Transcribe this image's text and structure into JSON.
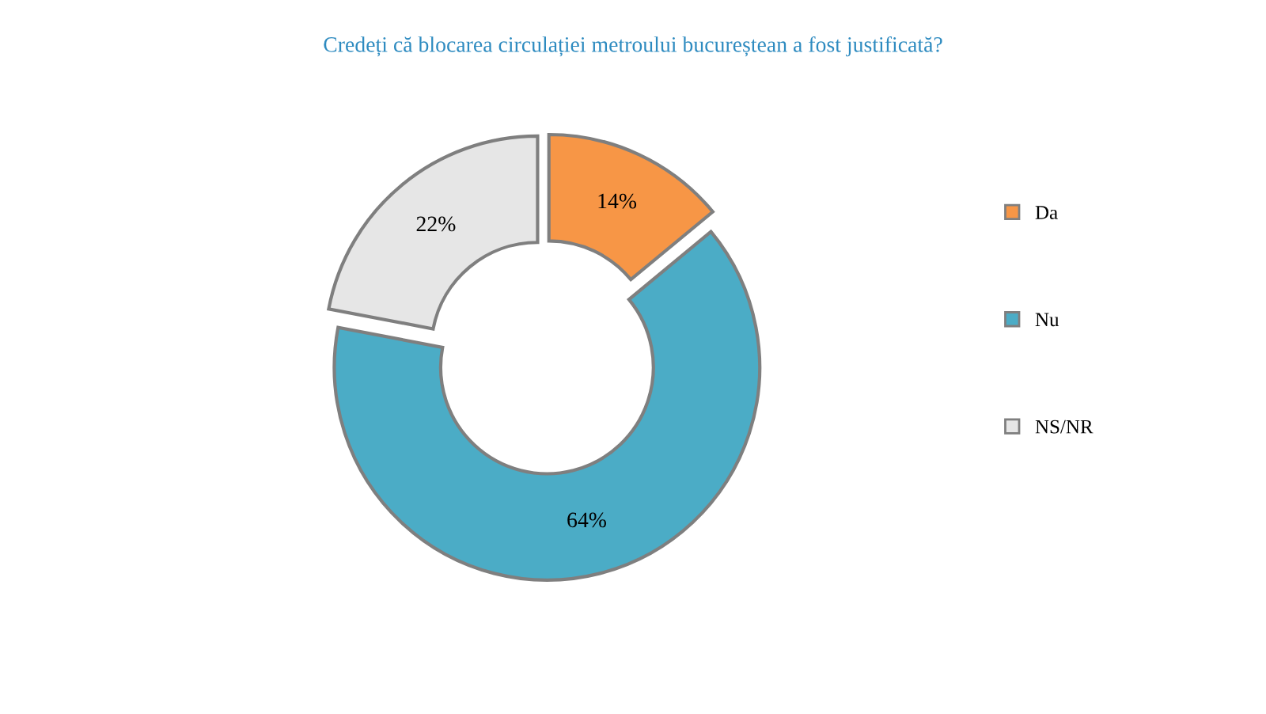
{
  "chart_data": {
    "type": "donut",
    "title": "Credeți că blocarea circulației metroului bucureștean a fost justificată?",
    "categories": [
      "Da",
      "Nu",
      "NS/NR"
    ],
    "values": [
      14,
      64,
      22
    ],
    "colors": [
      "#f79646",
      "#4bacc6",
      "#e6e6e6"
    ],
    "value_labels": [
      "14%",
      "64%",
      "22%"
    ],
    "legend": "right"
  }
}
